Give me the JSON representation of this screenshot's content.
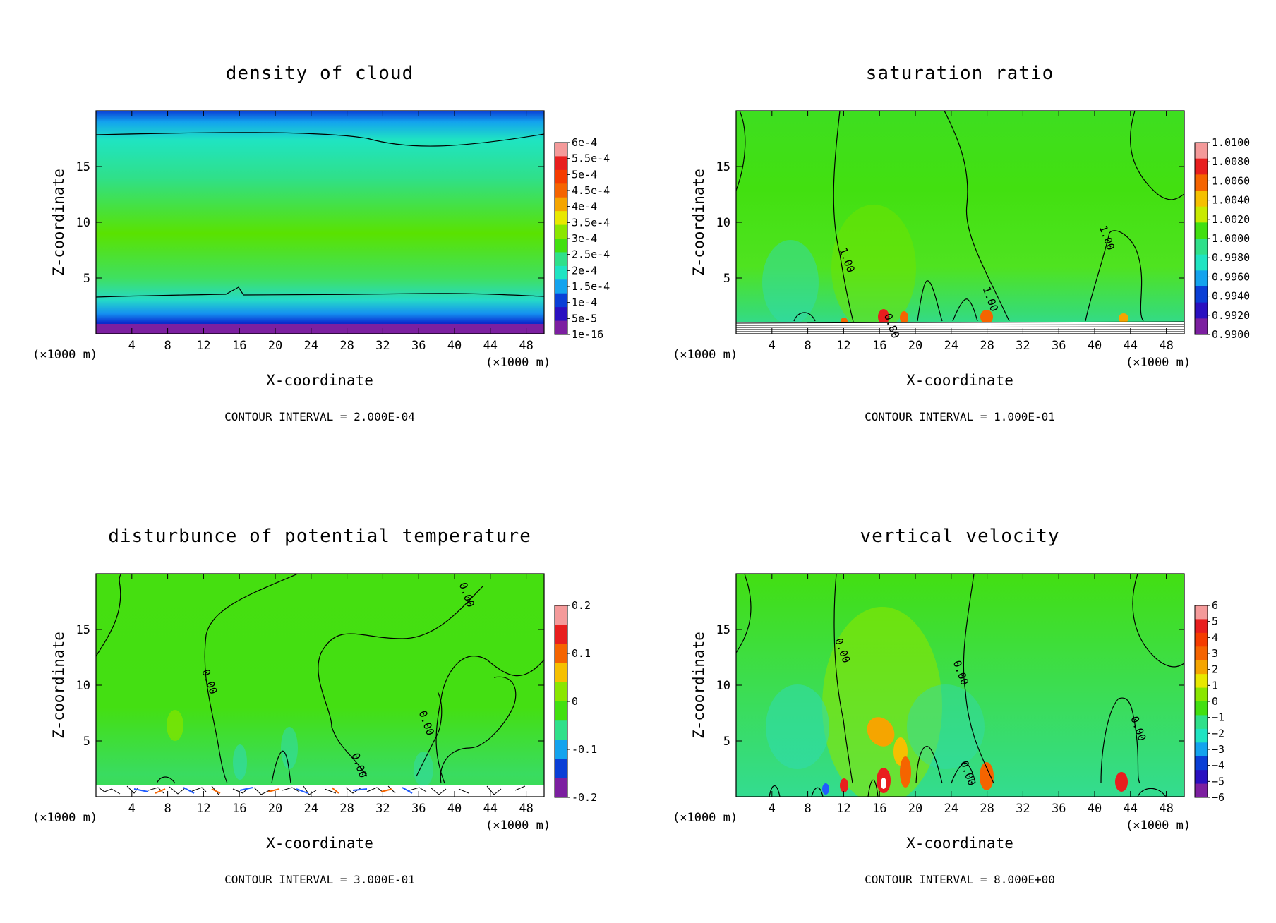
{
  "figure": {
    "unit_left": "(×1000 m)",
    "unit_right": "(×1000 m)"
  },
  "chart_data": [
    {
      "type": "heatmap",
      "title": "density of cloud",
      "xlabel": "X-coordinate",
      "ylabel": "Z-coordinate",
      "xlim": [
        0,
        50
      ],
      "ylim": [
        0,
        20
      ],
      "xticks": [
        "4",
        "8",
        "12",
        "16",
        "20",
        "24",
        "28",
        "32",
        "36",
        "40",
        "44",
        "48"
      ],
      "yticks": [
        "5",
        "10",
        "15"
      ],
      "colorbar": [
        "6e-4",
        "5.5e-4",
        "5e-4",
        "4.5e-4",
        "4e-4",
        "3.5e-4",
        "3e-4",
        "2.5e-4",
        "2e-4",
        "1.5e-4",
        "1e-4",
        "5e-5",
        "1e-16"
      ],
      "contour_interval": "CONTOUR INTERVAL = 2.000E-04",
      "contour_labels": []
    },
    {
      "type": "heatmap",
      "title": "saturation ratio",
      "xlabel": "X-coordinate",
      "ylabel": "Z-coordinate",
      "xlim": [
        0,
        50
      ],
      "ylim": [
        0,
        20
      ],
      "xticks": [
        "4",
        "8",
        "12",
        "16",
        "20",
        "24",
        "28",
        "32",
        "36",
        "40",
        "44",
        "48"
      ],
      "yticks": [
        "5",
        "10",
        "15"
      ],
      "colorbar": [
        "1.0100",
        "1.0080",
        "1.0060",
        "1.0040",
        "1.0020",
        "1.0000",
        "0.9980",
        "0.9960",
        "0.9940",
        "0.9920",
        "0.9900"
      ],
      "contour_interval": "CONTOUR INTERVAL = 1.000E-01",
      "contour_labels": [
        {
          "text": "1.00",
          "x": 12.0,
          "y": 6.5
        },
        {
          "text": "1.00",
          "x": 28.0,
          "y": 3.0
        },
        {
          "text": "1.00",
          "x": 41.0,
          "y": 8.5
        },
        {
          "text": "0.80",
          "x": 17.0,
          "y": 0.6
        }
      ]
    },
    {
      "type": "heatmap",
      "title": "disturbunce of potential temperature",
      "xlabel": "X-coordinate",
      "ylabel": "Z-coordinate",
      "xlim": [
        0,
        50
      ],
      "ylim": [
        0,
        20
      ],
      "xticks": [
        "4",
        "8",
        "12",
        "16",
        "20",
        "24",
        "28",
        "32",
        "36",
        "40",
        "44",
        "48"
      ],
      "yticks": [
        "5",
        "10",
        "15"
      ],
      "colorbar": [
        "0.2",
        "",
        "0.1",
        "",
        "0",
        "",
        "-0.1",
        "",
        "-0.2"
      ],
      "contour_interval": "CONTOUR INTERVAL = 3.000E-01",
      "contour_labels": [
        {
          "text": "0.00",
          "x": 12.3,
          "y": 10.2
        },
        {
          "text": "0.00",
          "x": 41.0,
          "y": 18.0
        },
        {
          "text": "0.00",
          "x": 36.5,
          "y": 6.5
        },
        {
          "text": "0.00",
          "x": 29.0,
          "y": 2.7
        }
      ]
    },
    {
      "type": "heatmap",
      "title": "vertical velocity",
      "xlabel": "X-coordinate",
      "ylabel": "Z-coordinate",
      "xlim": [
        0,
        50
      ],
      "ylim": [
        0,
        20
      ],
      "xticks": [
        "4",
        "8",
        "12",
        "16",
        "20",
        "24",
        "28",
        "32",
        "36",
        "40",
        "44",
        "48"
      ],
      "yticks": [
        "5",
        "10",
        "15"
      ],
      "colorbar": [
        "6",
        "5",
        "4",
        "3",
        "2",
        "1",
        "0",
        "−1",
        "−2",
        "−3",
        "−4",
        "−5",
        "−6"
      ],
      "contour_interval": "CONTOUR INTERVAL = 8.000E+00",
      "contour_labels": [
        {
          "text": "0.00",
          "x": 11.5,
          "y": 13.0
        },
        {
          "text": "0.00",
          "x": 24.7,
          "y": 11.0
        },
        {
          "text": "0.00",
          "x": 44.5,
          "y": 6.0
        },
        {
          "text": "0.00",
          "x": 25.5,
          "y": 2.0
        }
      ]
    }
  ]
}
